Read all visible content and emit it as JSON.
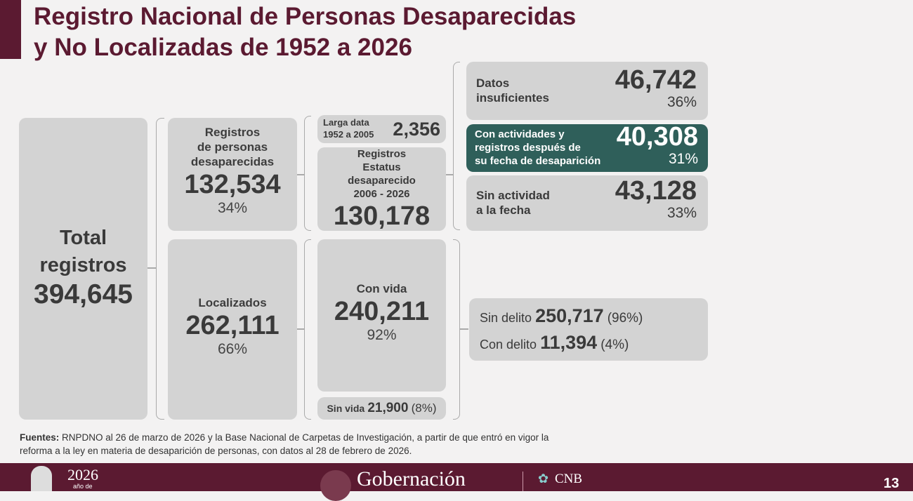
{
  "title": {
    "line1": "Registro Nacional de Personas Desaparecidas",
    "line2": "y No Localizadas de 1952 a 2026"
  },
  "total": {
    "label1": "Total",
    "label2": "registros",
    "value": "394,645"
  },
  "desaparecidas": {
    "l1": "Registros",
    "l2": "de personas",
    "l3": "desaparecidas",
    "value": "132,534",
    "pct": "34%"
  },
  "localizados": {
    "label": "Localizados",
    "value": "262,111",
    "pct": "66%"
  },
  "larga_data": {
    "l1": "Larga data",
    "l2": "1952 a 2005",
    "value": "2,356"
  },
  "estatus": {
    "l1": "Registros",
    "l2": "Estatus",
    "l3": "desaparecido",
    "l4": "2006 - 2026",
    "value": "130,178"
  },
  "con_vida": {
    "label": "Con vida",
    "value": "240,211",
    "pct": "92%"
  },
  "sin_vida": {
    "label": "Sin vida",
    "value": "21,900",
    "pct": "(8%)"
  },
  "datos_insuf": {
    "l1": "Datos",
    "l2": "insuficientes",
    "value": "46,742",
    "pct": "36%"
  },
  "con_actividades": {
    "l1": "Con actividades y",
    "l2": "registros después de",
    "l3": "su fecha de desaparición",
    "value": "40,308",
    "pct": "31%",
    "color": "#2f5f5a"
  },
  "sin_actividad": {
    "l1": "Sin actividad",
    "l2": "a la fecha",
    "value": "43,128",
    "pct": "33%"
  },
  "delito": {
    "sin_label": "Sin delito",
    "sin_value": "250,717",
    "sin_pct": "(96%)",
    "con_label": "Con delito",
    "con_value": "11,394",
    "con_pct": "(4%)"
  },
  "sources": {
    "bold": "Fuentes:",
    "text1": " RNPDNO al 26 de marzo de 2026 y la Base Nacional de Carpetas de Investigación, a partir de que entró en vigor la",
    "text2": "reforma a la ley en materia de desaparición de personas, con datos al 28 de febrero de 2026."
  },
  "footer": {
    "year": "2026",
    "year_sub": "año de",
    "brand": "Gobernación",
    "cnb": "CNB",
    "page": "13"
  }
}
